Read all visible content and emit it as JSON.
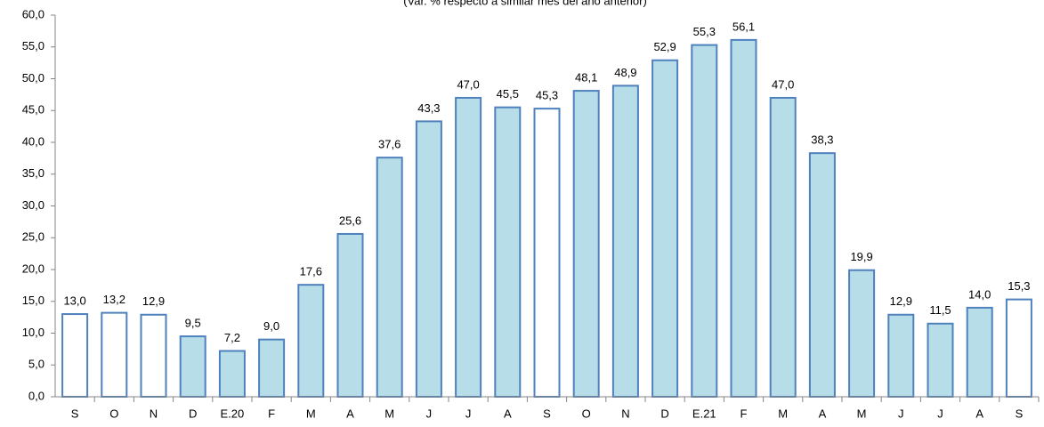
{
  "chart_data": {
    "type": "bar",
    "subtitle": "(Var. % respecto a similar mes del año anterior)",
    "categories": [
      "S",
      "O",
      "N",
      "D",
      "E.20",
      "F",
      "M",
      "A",
      "M",
      "J",
      "J",
      "A",
      "S",
      "O",
      "N",
      "D",
      "E.21",
      "F",
      "M",
      "A",
      "M",
      "J",
      "J",
      "A",
      "S"
    ],
    "values": [
      13.0,
      13.2,
      12.9,
      9.5,
      7.2,
      9.0,
      17.6,
      25.6,
      37.6,
      43.3,
      47.0,
      45.5,
      45.3,
      48.1,
      48.9,
      52.9,
      55.3,
      56.1,
      47.0,
      38.3,
      19.9,
      12.9,
      11.5,
      14.0,
      15.3
    ],
    "value_labels": [
      "13,0",
      "13,2",
      "12,9",
      "9,5",
      "7,2",
      "9,0",
      "17,6",
      "25,6",
      "37,6",
      "43,3",
      "47,0",
      "45,5",
      "45,3",
      "48,1",
      "48,9",
      "52,9",
      "55,3",
      "56,1",
      "47,0",
      "38,3",
      "19,9",
      "12,9",
      "11,5",
      "14,0",
      "15,3"
    ],
    "colors": [
      "#ffffff",
      "#ffffff",
      "#ffffff",
      "#b7dde8",
      "#b7dde8",
      "#b7dde8",
      "#b7dde8",
      "#b7dde8",
      "#b7dde8",
      "#b7dde8",
      "#b7dde8",
      "#b7dde8",
      "#ffffff",
      "#b7dde8",
      "#b7dde8",
      "#b7dde8",
      "#b7dde8",
      "#b7dde8",
      "#b7dde8",
      "#b7dde8",
      "#b7dde8",
      "#b7dde8",
      "#b7dde8",
      "#b7dde8",
      "#ffffff"
    ],
    "edge_color": "#4f81bd",
    "ylim": [
      0,
      60
    ],
    "yticks": [
      {
        "value": 0,
        "label": "0,0"
      },
      {
        "value": 5,
        "label": "5,0"
      },
      {
        "value": 10,
        "label": "10,0"
      },
      {
        "value": 15,
        "label": "15,0"
      },
      {
        "value": 20,
        "label": "20,0"
      },
      {
        "value": 25,
        "label": "25,0"
      },
      {
        "value": 30,
        "label": "30,0"
      },
      {
        "value": 35,
        "label": "35,0"
      },
      {
        "value": 40,
        "label": "40,0"
      },
      {
        "value": 45,
        "label": "45,0"
      },
      {
        "value": 50,
        "label": "50,0"
      },
      {
        "value": 55,
        "label": "55,0"
      },
      {
        "value": 60,
        "label": "60,0"
      }
    ],
    "grid": false
  }
}
